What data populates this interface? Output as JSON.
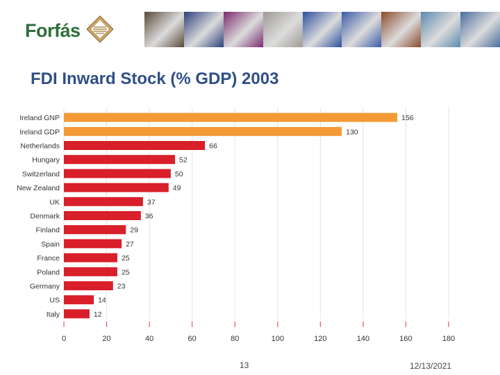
{
  "header": {
    "logo_text": "Forfás",
    "logo_icon": "diamond-emblem-icon",
    "banner_colors": [
      "#5a4a3a",
      "#2d3f7a",
      "#7a2a6e",
      "#9e9a94",
      "#2b4f9e",
      "#3a5aa8",
      "#8a4a2a",
      "#5a8ab0",
      "#4a6e9e"
    ]
  },
  "slide": {
    "title": "FDI Inward Stock (% GDP) 2003",
    "page_number": "13",
    "date": "12/13/2021"
  },
  "chart_data": {
    "type": "bar",
    "orientation": "horizontal",
    "title": "FDI Inward Stock (% GDP) 2003",
    "categories": [
      "Ireland GNP",
      "Ireland GDP",
      "Netherlands",
      "Hungary",
      "Switzerland",
      "New Zealand",
      "UK",
      "Denmark",
      "Finland",
      "Spain",
      "France",
      "Poland",
      "Germany",
      "US",
      "Italy"
    ],
    "values": [
      156,
      130,
      66,
      52,
      50,
      49,
      37,
      36,
      29,
      27,
      25,
      25,
      23,
      14,
      12
    ],
    "bar_colors": [
      "#f39a35",
      "#f39a35",
      "#d81f2a",
      "#d81f2a",
      "#d81f2a",
      "#d81f2a",
      "#d81f2a",
      "#d81f2a",
      "#d81f2a",
      "#d81f2a",
      "#d81f2a",
      "#d81f2a",
      "#d81f2a",
      "#d81f2a",
      "#d81f2a"
    ],
    "x_ticks": [
      0,
      20,
      40,
      60,
      80,
      100,
      120,
      140,
      160,
      180
    ],
    "xlim": [
      0,
      180
    ],
    "grid": true,
    "xlabel": "",
    "ylabel": ""
  }
}
